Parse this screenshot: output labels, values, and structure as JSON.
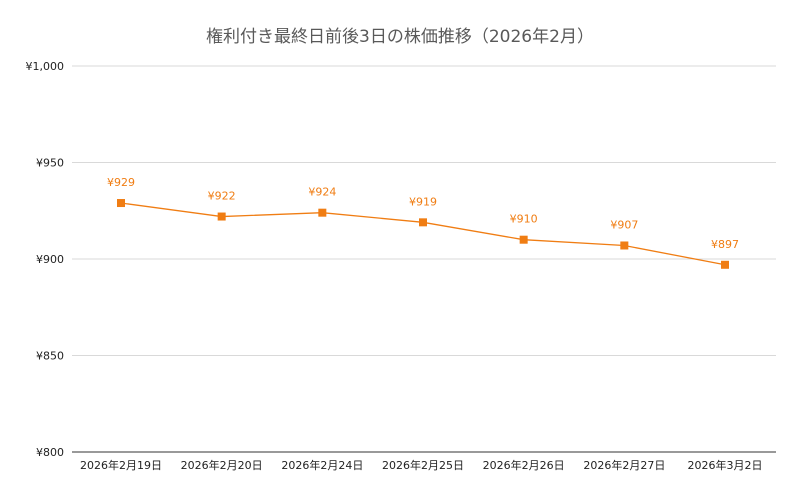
{
  "chart_data": {
    "type": "line",
    "title": "権利付き最終日前後3日の株価推移（2026年2月）",
    "xlabel": "",
    "ylabel": "",
    "categories": [
      "2026年2月19日",
      "2026年2月20日",
      "2026年2月24日",
      "2026年2月25日",
      "2026年2月26日",
      "2026年2月27日",
      "2026年3月2日"
    ],
    "series": [
      {
        "values": [
          929,
          922,
          924,
          919,
          910,
          907,
          897
        ],
        "color": "#f07d13"
      }
    ],
    "data_labels": [
      "¥929",
      "¥922",
      "¥924",
      "¥919",
      "¥910",
      "¥907",
      "¥897"
    ],
    "ylim": [
      800,
      1000
    ],
    "yticks": [
      800,
      850,
      900,
      950,
      1000
    ],
    "ytick_labels": [
      "¥800",
      "¥850",
      "¥900",
      "¥950",
      "¥1,000"
    ],
    "grid": true,
    "legend": "none",
    "gridline_color": "#d9d9d9",
    "label_color": "#f07d13"
  }
}
